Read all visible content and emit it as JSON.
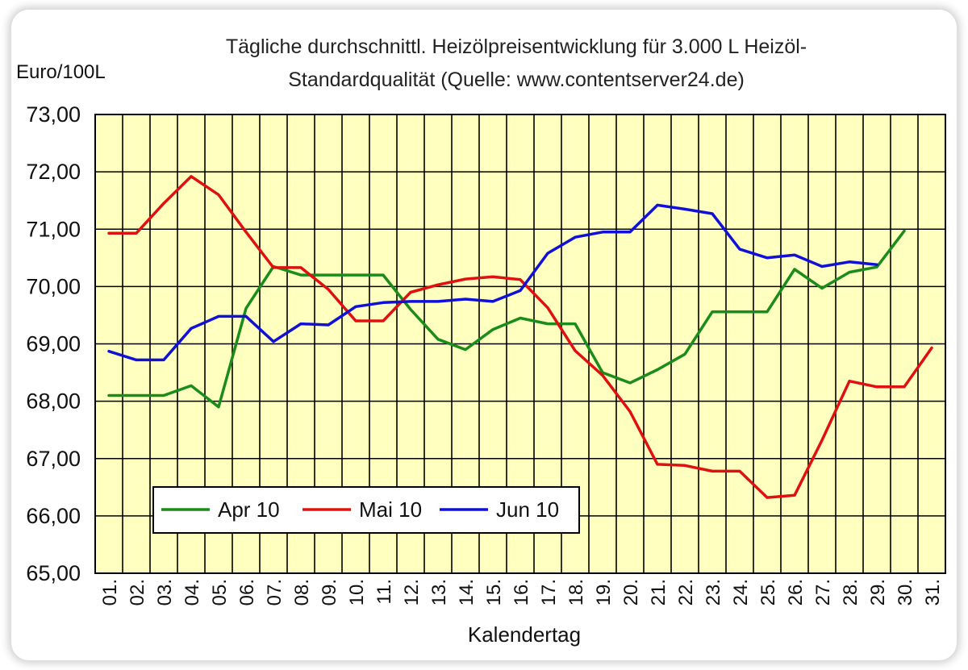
{
  "chart_data": {
    "type": "line",
    "title_lines": [
      "Tägliche durchschnittl. Heizölpreisentwicklung für 3.000 L Heizöl-",
      "Standardqualität (Quelle: www.contentserver24.de)"
    ],
    "ylabel": "Euro/100L",
    "xlabel": "Kalendertag",
    "ylim": [
      65,
      73
    ],
    "yticks": [
      73,
      72,
      71,
      70,
      69,
      68,
      67,
      66,
      65
    ],
    "ytick_labels": [
      "73,00",
      "72,00",
      "71,00",
      "70,00",
      "69,00",
      "68,00",
      "67,00",
      "66,00",
      "65,00"
    ],
    "categories": [
      "01.",
      "02.",
      "03.",
      "04.",
      "05.",
      "06.",
      "07.",
      "08.",
      "09.",
      "10.",
      "11.",
      "12.",
      "13.",
      "14.",
      "15.",
      "16.",
      "17.",
      "18.",
      "19.",
      "20.",
      "21.",
      "22.",
      "23.",
      "24.",
      "25.",
      "26.",
      "27.",
      "28.",
      "29.",
      "30.",
      "31."
    ],
    "grid": true,
    "legend_position": "bottom-left",
    "series": [
      {
        "name": "Apr 10",
        "color": "#1a8c1a",
        "values": [
          68.1,
          68.1,
          68.1,
          68.27,
          67.9,
          69.62,
          70.35,
          70.2,
          70.2,
          70.2,
          70.2,
          69.6,
          69.08,
          68.9,
          69.25,
          69.45,
          69.35,
          69.35,
          68.5,
          68.32,
          68.55,
          68.82,
          69.56,
          69.56,
          69.56,
          70.3,
          69.97,
          70.25,
          70.34,
          70.97,
          null
        ]
      },
      {
        "name": "Mai 10",
        "color": "#e01010",
        "values": [
          70.93,
          70.93,
          71.45,
          71.92,
          71.6,
          70.95,
          70.33,
          70.33,
          69.95,
          69.4,
          69.4,
          69.9,
          70.03,
          70.13,
          70.17,
          70.12,
          69.63,
          68.88,
          68.45,
          67.82,
          66.9,
          66.88,
          66.78,
          66.78,
          66.32,
          66.36,
          67.32,
          68.35,
          68.25,
          68.25,
          68.93
        ]
      },
      {
        "name": "Jun 10",
        "color": "#1010d8",
        "values": [
          68.87,
          68.72,
          68.72,
          69.27,
          69.48,
          69.48,
          69.04,
          69.35,
          69.33,
          69.65,
          69.72,
          69.74,
          69.74,
          69.78,
          69.74,
          69.93,
          70.58,
          70.86,
          70.95,
          70.95,
          71.42,
          71.35,
          71.27,
          70.65,
          70.5,
          70.55,
          70.35,
          70.43,
          70.38,
          null,
          null
        ]
      }
    ]
  }
}
